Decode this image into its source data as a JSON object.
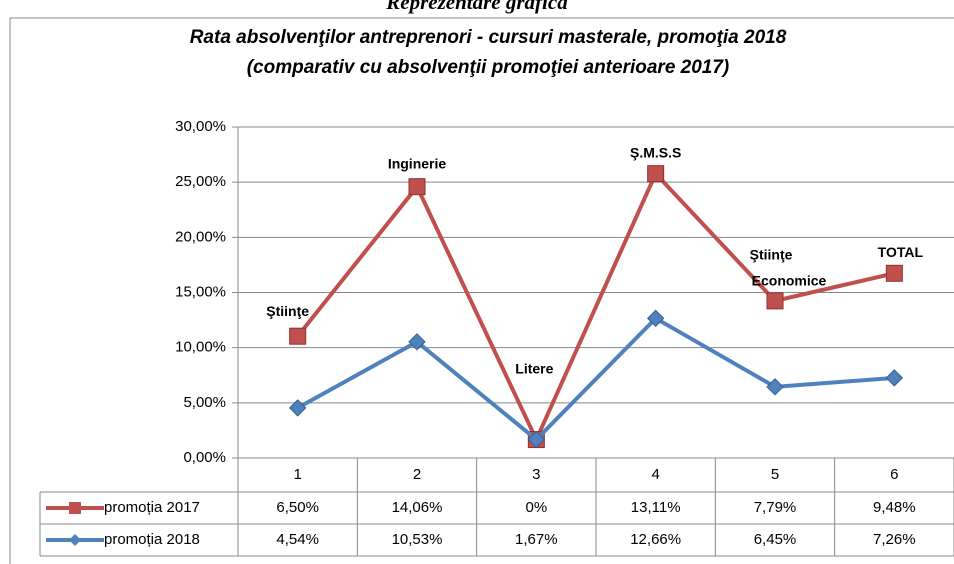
{
  "chart_data": {
    "type": "line",
    "stacked": true,
    "heading": "Reprezentare grafică",
    "title": "Rata absolvenţilor antreprenori - cursuri masterale, promoţia 2018",
    "subtitle": "(comparativ cu absolvenţii promoţiei anterioare 2017)",
    "categories": [
      "1",
      "2",
      "3",
      "4",
      "5",
      "6"
    ],
    "series": [
      {
        "name": "promoția 2017",
        "color": "#c0504d",
        "marker": "square",
        "values": [
          6.5,
          14.06,
          0,
          13.11,
          7.79,
          9.48
        ],
        "value_labels": [
          "6,50%",
          "14,06%",
          "0%",
          "13,11%",
          "7,79%",
          "9,48%"
        ]
      },
      {
        "name": "promoția 2018",
        "color": "#4f81bd",
        "marker": "diamond",
        "values": [
          4.54,
          10.53,
          1.67,
          12.66,
          6.45,
          7.26
        ],
        "value_labels": [
          "4,54%",
          "10,53%",
          "1,67%",
          "12,66%",
          "6,45%",
          "7,26%"
        ]
      }
    ],
    "annotations": [
      [
        "Ştiinţe"
      ],
      [
        "Inginerie"
      ],
      [
        "Litere"
      ],
      [
        "Ş.M.S.S"
      ],
      [
        "Ştiinţe",
        "Economice"
      ],
      [
        "TOTAL"
      ]
    ],
    "ylim": [
      0,
      30
    ],
    "yticks": [
      {
        "value": 0,
        "label": "0,00%"
      },
      {
        "value": 5,
        "label": "5,00%"
      },
      {
        "value": 10,
        "label": "10,00%"
      },
      {
        "value": 15,
        "label": "15,00%"
      },
      {
        "value": 20,
        "label": "20,00%"
      },
      {
        "value": 25,
        "label": "25,00%"
      },
      {
        "value": 30,
        "label": "30,00%"
      }
    ],
    "grid": true
  }
}
